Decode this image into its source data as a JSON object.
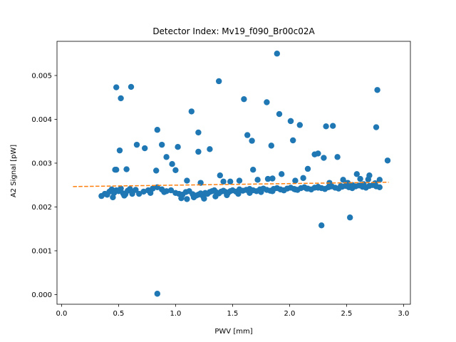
{
  "chart_data": {
    "type": "scatter",
    "title": "Detector Index: Mv19_f090_Br00c02A",
    "xlabel": "PWV [mm]",
    "ylabel": "A2 Signal [pW]",
    "xlim": [
      -0.04,
      3.06
    ],
    "ylim": [
      -0.00022,
      0.00578
    ],
    "xticks": [
      0.0,
      0.5,
      1.0,
      1.5,
      2.0,
      2.5,
      3.0
    ],
    "xtick_labels": [
      "0.0",
      "0.5",
      "1.0",
      "1.5",
      "2.0",
      "2.5",
      "3.0"
    ],
    "yticks": [
      0.0,
      0.001,
      0.002,
      0.003,
      0.004,
      0.005
    ],
    "ytick_labels": [
      "0.000",
      "0.001",
      "0.002",
      "0.003",
      "0.004",
      "0.005"
    ],
    "colors": {
      "points": "#1f77b4",
      "fit": "#ff7f0e"
    },
    "series": [
      {
        "name": "A2 Signal",
        "kind": "points",
        "x": [
          0.35,
          0.38,
          0.4,
          0.42,
          0.44,
          0.46,
          0.48,
          0.5,
          0.52,
          0.54,
          0.56,
          0.58,
          0.6,
          0.62,
          0.65,
          0.68,
          0.72,
          0.76,
          0.8,
          0.84,
          0.88,
          0.92,
          0.96,
          1.0,
          1.03,
          1.06,
          1.09,
          1.12,
          1.15,
          1.18,
          1.2,
          1.22,
          1.24,
          1.26,
          1.28,
          1.3,
          1.32,
          1.34,
          1.36,
          1.38,
          1.4,
          1.42,
          1.44,
          1.46,
          1.48,
          1.5,
          1.53,
          1.56,
          1.59,
          1.62,
          1.65,
          1.68,
          1.71,
          1.74,
          1.77,
          1.8,
          1.83,
          1.86,
          1.89,
          1.92,
          1.95,
          1.98,
          2.01,
          2.04,
          2.07,
          2.1,
          2.13,
          2.16,
          2.19,
          2.22,
          2.25,
          2.28,
          2.31,
          2.34,
          2.37,
          2.4,
          2.43,
          2.46,
          2.49,
          2.52,
          2.55,
          2.58,
          2.61,
          2.64,
          2.67,
          2.7,
          2.73,
          2.76,
          2.79,
          0.45,
          0.55,
          0.62,
          0.78,
          0.9,
          1.05,
          1.1,
          1.16,
          1.25,
          1.35,
          1.45,
          1.55,
          1.65,
          1.75,
          1.85,
          1.95,
          2.05,
          2.15,
          2.25,
          2.35,
          2.45,
          2.55,
          2.65,
          2.75,
          0.48,
          0.47,
          0.52,
          0.61,
          0.84,
          1.89,
          1.38,
          1.6,
          1.8,
          1.91,
          2.01,
          2.09,
          1.14,
          1.2,
          1.63,
          1.67,
          1.84,
          2.03,
          2.32,
          2.38,
          2.77,
          2.76,
          0.48,
          0.51,
          0.57,
          0.66,
          0.73,
          0.83,
          0.88,
          0.92,
          0.97,
          1.0,
          1.02,
          1.2,
          1.3,
          1.39,
          1.48,
          1.56,
          1.68,
          1.81,
          1.85,
          1.93,
          2.01,
          2.05,
          2.16,
          2.22,
          2.25,
          2.3,
          2.35,
          2.42,
          2.47,
          2.51,
          2.59,
          2.69,
          2.79,
          2.86,
          2.28,
          2.53,
          0.84,
          1.1,
          1.22,
          1.42,
          1.72,
          2.12,
          2.62,
          2.7
        ],
        "y": [
          0.00225,
          0.0023,
          0.00228,
          0.00235,
          0.0024,
          0.00232,
          0.00238,
          0.00236,
          0.00242,
          0.00231,
          0.00229,
          0.00237,
          0.00241,
          0.00233,
          0.00239,
          0.0023,
          0.00235,
          0.00238,
          0.00242,
          0.00245,
          0.0024,
          0.00236,
          0.00238,
          0.00232,
          0.0023,
          0.00228,
          0.00234,
          0.00236,
          0.00229,
          0.00226,
          0.00228,
          0.00231,
          0.00225,
          0.00232,
          0.0023,
          0.00234,
          0.00236,
          0.00238,
          0.00233,
          0.00231,
          0.00235,
          0.00237,
          0.00234,
          0.00232,
          0.00236,
          0.00238,
          0.00235,
          0.0024,
          0.00237,
          0.00239,
          0.00241,
          0.00238,
          0.00236,
          0.0024,
          0.00242,
          0.00239,
          0.00237,
          0.00241,
          0.00243,
          0.0024,
          0.00238,
          0.00242,
          0.00244,
          0.00241,
          0.00239,
          0.00243,
          0.00245,
          0.00242,
          0.0024,
          0.00244,
          0.00246,
          0.00243,
          0.00241,
          0.00245,
          0.00247,
          0.00244,
          0.00242,
          0.00246,
          0.00248,
          0.00245,
          0.00243,
          0.00247,
          0.00249,
          0.00246,
          0.00244,
          0.00248,
          0.0025,
          0.00247,
          0.00245,
          0.00222,
          0.00226,
          0.0023,
          0.00232,
          0.00234,
          0.0022,
          0.00218,
          0.00222,
          0.00219,
          0.00224,
          0.00227,
          0.0023,
          0.00232,
          0.00234,
          0.00236,
          0.00238,
          0.0024,
          0.00242,
          0.00244,
          0.00246,
          0.00248,
          0.0025,
          0.00252,
          0.00254,
          0.00473,
          0.00285,
          0.00448,
          0.00474,
          0.00376,
          0.0055,
          0.00487,
          0.00446,
          0.00439,
          0.00412,
          0.00396,
          0.00387,
          0.00418,
          0.0037,
          0.00364,
          0.00351,
          0.0034,
          0.00352,
          0.00384,
          0.00385,
          0.00467,
          0.00382,
          0.00285,
          0.00329,
          0.00286,
          0.00342,
          0.00334,
          0.00283,
          0.00342,
          0.00314,
          0.00298,
          0.00284,
          0.00337,
          0.00326,
          0.00332,
          0.00272,
          0.00258,
          0.0026,
          0.00285,
          0.00264,
          0.00265,
          0.00275,
          0.00396,
          0.0026,
          0.00287,
          0.0032,
          0.00322,
          0.00312,
          0.00255,
          0.00314,
          0.00262,
          0.00255,
          0.00275,
          0.00263,
          0.00262,
          0.00306,
          0.00158,
          0.00176,
          2e-05,
          0.0026,
          0.00255,
          0.00258,
          0.00262,
          0.00266,
          0.00264,
          0.00272
        ],
        "trend": "y increases slowly with x from about 0.0023 to 0.0025; outliers extend up to 0.0055"
      },
      {
        "name": "Linear fit",
        "kind": "dashed-line",
        "x": [
          0.1,
          2.87
        ],
        "y": [
          0.002465,
          0.002565
        ]
      }
    ],
    "grid": false,
    "legend": "none"
  }
}
